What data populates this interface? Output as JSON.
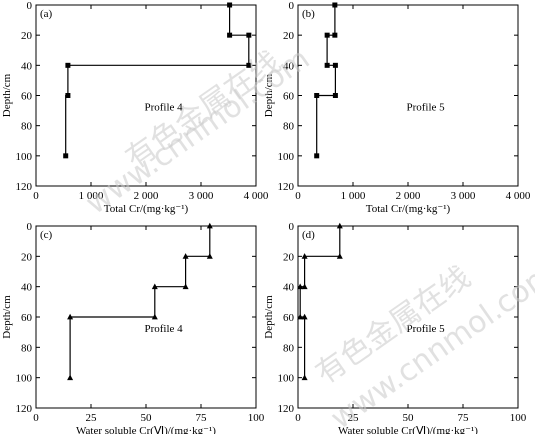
{
  "watermark": {
    "line1": "有色金属在线",
    "line2": "www.cnnmol.com"
  },
  "chart_data": [
    {
      "id": "a",
      "type": "line",
      "panel_label": "(a)",
      "annotation": "Profile 4",
      "xlabel": "Total Cr/(mg·kg⁻¹)",
      "ylabel": "Depth/cm",
      "xlim": [
        0,
        4000
      ],
      "ylim": [
        120,
        0
      ],
      "xticks": [
        0,
        1000,
        2000,
        3000,
        4000
      ],
      "xtick_labels": [
        "0",
        "1 000",
        "2 000",
        "3 000",
        "4 000"
      ],
      "yticks": [
        0,
        20,
        40,
        60,
        80,
        100,
        120
      ],
      "marker": "square",
      "series": [
        {
          "points": [
            [
              3520,
              0
            ],
            [
              3520,
              20
            ],
            [
              3870,
              20
            ],
            [
              3870,
              40
            ],
            [
              580,
              40
            ],
            [
              580,
              60
            ],
            [
              540,
              60
            ],
            [
              540,
              100
            ]
          ],
          "markers": [
            [
              3520,
              0
            ],
            [
              3520,
              20
            ],
            [
              3870,
              20
            ],
            [
              3870,
              40
            ],
            [
              580,
              40
            ],
            [
              580,
              60
            ],
            [
              540,
              100
            ]
          ]
        }
      ]
    },
    {
      "id": "b",
      "type": "line",
      "panel_label": "(b)",
      "annotation": "Profile 5",
      "xlabel": "Total Cr/(mg·kg⁻¹)",
      "ylabel": "Depth/cm",
      "xlim": [
        0,
        4000
      ],
      "ylim": [
        120,
        0
      ],
      "xticks": [
        0,
        1000,
        2000,
        3000,
        4000
      ],
      "xtick_labels": [
        "0",
        "1 000",
        "2 000",
        "3 000",
        "4 000"
      ],
      "yticks": [
        0,
        20,
        40,
        60,
        80,
        100,
        120
      ],
      "marker": "square",
      "series": [
        {
          "points": [
            [
              670,
              0
            ],
            [
              670,
              20
            ],
            [
              530,
              20
            ],
            [
              530,
              40
            ],
            [
              680,
              40
            ],
            [
              680,
              60
            ],
            [
              340,
              60
            ],
            [
              340,
              100
            ]
          ],
          "markers": [
            [
              670,
              0
            ],
            [
              670,
              20
            ],
            [
              530,
              20
            ],
            [
              530,
              40
            ],
            [
              680,
              40
            ],
            [
              680,
              60
            ],
            [
              340,
              60
            ],
            [
              340,
              100
            ]
          ]
        }
      ]
    },
    {
      "id": "c",
      "type": "line",
      "panel_label": "(c)",
      "annotation": "Profile 4",
      "xlabel": "Water soluble Cr(Ⅵ)/(mg·kg⁻¹)",
      "ylabel": "Depth/cm",
      "xlim": [
        0,
        100
      ],
      "ylim": [
        120,
        0
      ],
      "xticks": [
        0,
        25,
        50,
        75,
        100
      ],
      "xtick_labels": [
        "0",
        "25",
        "50",
        "75",
        "100"
      ],
      "yticks": [
        0,
        20,
        40,
        60,
        80,
        100,
        120
      ],
      "marker": "triangle",
      "series": [
        {
          "points": [
            [
              79,
              0
            ],
            [
              79,
              20
            ],
            [
              68,
              20
            ],
            [
              68,
              40
            ],
            [
              54,
              40
            ],
            [
              54,
              60
            ],
            [
              15.5,
              60
            ],
            [
              15.5,
              100
            ]
          ],
          "markers": [
            [
              79,
              0
            ],
            [
              79,
              20
            ],
            [
              68,
              20
            ],
            [
              68,
              40
            ],
            [
              54,
              40
            ],
            [
              54,
              60
            ],
            [
              15.5,
              60
            ],
            [
              15.5,
              100
            ]
          ]
        }
      ]
    },
    {
      "id": "d",
      "type": "line",
      "panel_label": "(d)",
      "annotation": "Profile 5",
      "xlabel": "Water soluble Cr(Ⅵ)/(mg·kg⁻¹)",
      "ylabel": "Depth/cm",
      "xlim": [
        0,
        100
      ],
      "ylim": [
        120,
        0
      ],
      "xticks": [
        0,
        25,
        50,
        75,
        100
      ],
      "xtick_labels": [
        "0",
        "25",
        "50",
        "75",
        "100"
      ],
      "yticks": [
        0,
        20,
        40,
        60,
        80,
        100,
        120
      ],
      "marker": "triangle",
      "series": [
        {
          "points": [
            [
              19,
              0
            ],
            [
              19,
              20
            ],
            [
              3,
              20
            ],
            [
              3,
              40
            ],
            [
              1,
              40
            ],
            [
              1,
              60
            ],
            [
              3,
              60
            ],
            [
              3,
              100
            ]
          ],
          "markers": [
            [
              19,
              0
            ],
            [
              19,
              20
            ],
            [
              3,
              20
            ],
            [
              3,
              40
            ],
            [
              1,
              40
            ],
            [
              1,
              60
            ],
            [
              3,
              60
            ],
            [
              3,
              100
            ]
          ]
        }
      ]
    }
  ]
}
